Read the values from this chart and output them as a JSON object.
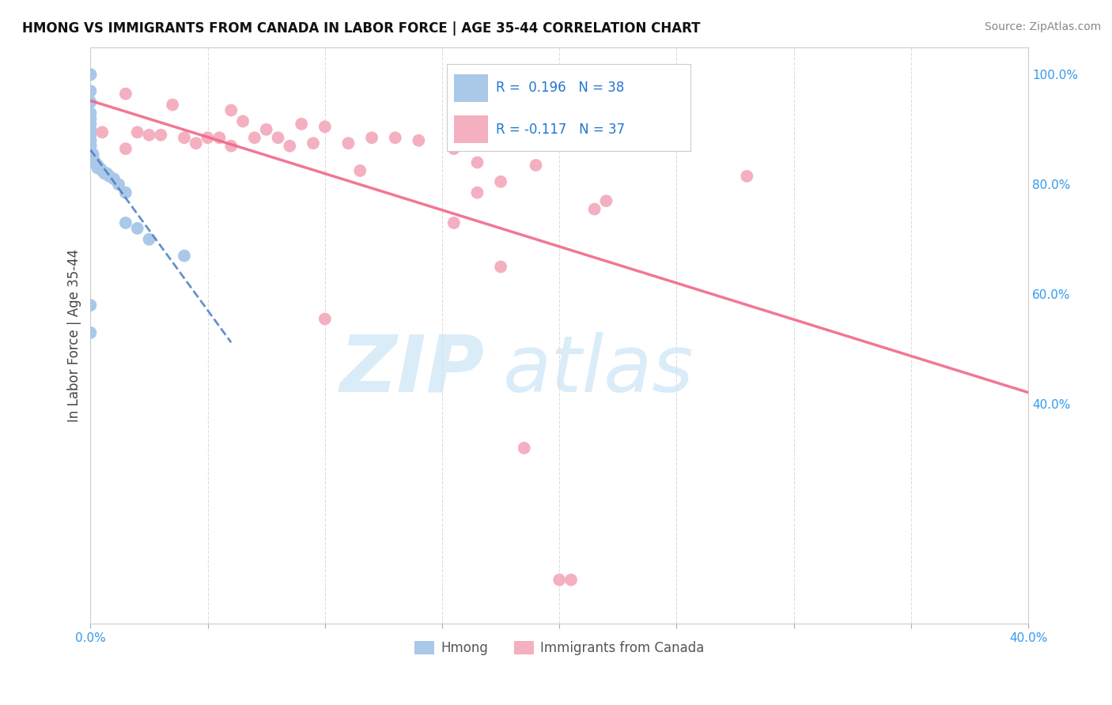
{
  "title": "HMONG VS IMMIGRANTS FROM CANADA IN LABOR FORCE | AGE 35-44 CORRELATION CHART",
  "source": "Source: ZipAtlas.com",
  "ylabel": "In Labor Force | Age 35-44",
  "xlim": [
    0.0,
    0.4
  ],
  "ylim": [
    0.0,
    1.05
  ],
  "grid_color": "#dddddd",
  "hmong_color": "#aac8e8",
  "canada_color": "#f4b0c0",
  "hmong_line_color": "#4a7fbf",
  "canada_line_color": "#f06888",
  "hmong_R": 0.196,
  "hmong_N": 38,
  "canada_R": -0.117,
  "canada_N": 37,
  "legend_color": "#2277cc",
  "hmong_points": [
    [
      0.0,
      1.0
    ],
    [
      0.0,
      1.0
    ],
    [
      0.0,
      0.97
    ],
    [
      0.0,
      0.95
    ],
    [
      0.0,
      0.93
    ],
    [
      0.0,
      0.92
    ],
    [
      0.0,
      0.91
    ],
    [
      0.0,
      0.9
    ],
    [
      0.0,
      0.89
    ],
    [
      0.0,
      0.88
    ],
    [
      0.0,
      0.88
    ],
    [
      0.0,
      0.87
    ],
    [
      0.0,
      0.87
    ],
    [
      0.0,
      0.86
    ],
    [
      0.0,
      0.86
    ],
    [
      0.0,
      0.86
    ],
    [
      0.001,
      0.855
    ],
    [
      0.001,
      0.855
    ],
    [
      0.001,
      0.85
    ],
    [
      0.001,
      0.845
    ],
    [
      0.002,
      0.84
    ],
    [
      0.002,
      0.84
    ],
    [
      0.003,
      0.835
    ],
    [
      0.003,
      0.83
    ],
    [
      0.004,
      0.83
    ],
    [
      0.005,
      0.825
    ],
    [
      0.006,
      0.82
    ],
    [
      0.007,
      0.82
    ],
    [
      0.008,
      0.815
    ],
    [
      0.01,
      0.81
    ],
    [
      0.012,
      0.8
    ],
    [
      0.015,
      0.785
    ],
    [
      0.015,
      0.73
    ],
    [
      0.02,
      0.72
    ],
    [
      0.025,
      0.7
    ],
    [
      0.04,
      0.67
    ],
    [
      0.0,
      0.58
    ],
    [
      0.0,
      0.53
    ]
  ],
  "canada_points": [
    [
      0.015,
      0.965
    ],
    [
      0.035,
      0.945
    ],
    [
      0.06,
      0.935
    ],
    [
      0.25,
      0.93
    ],
    [
      0.065,
      0.915
    ],
    [
      0.09,
      0.91
    ],
    [
      0.1,
      0.905
    ],
    [
      0.075,
      0.9
    ],
    [
      0.005,
      0.895
    ],
    [
      0.02,
      0.895
    ],
    [
      0.025,
      0.89
    ],
    [
      0.03,
      0.89
    ],
    [
      0.04,
      0.885
    ],
    [
      0.05,
      0.885
    ],
    [
      0.055,
      0.885
    ],
    [
      0.07,
      0.885
    ],
    [
      0.08,
      0.885
    ],
    [
      0.12,
      0.885
    ],
    [
      0.13,
      0.885
    ],
    [
      0.14,
      0.88
    ],
    [
      0.045,
      0.875
    ],
    [
      0.095,
      0.875
    ],
    [
      0.11,
      0.875
    ],
    [
      0.06,
      0.87
    ],
    [
      0.085,
      0.87
    ],
    [
      0.015,
      0.865
    ],
    [
      0.155,
      0.865
    ],
    [
      0.165,
      0.84
    ],
    [
      0.19,
      0.835
    ],
    [
      0.115,
      0.825
    ],
    [
      0.28,
      0.815
    ],
    [
      0.175,
      0.805
    ],
    [
      0.165,
      0.785
    ],
    [
      0.22,
      0.77
    ],
    [
      0.215,
      0.755
    ],
    [
      0.155,
      0.73
    ],
    [
      0.175,
      0.65
    ]
  ],
  "canada_low_points": [
    [
      0.1,
      0.555
    ],
    [
      0.185,
      0.32
    ],
    [
      0.2,
      0.08
    ],
    [
      0.205,
      0.08
    ]
  ]
}
